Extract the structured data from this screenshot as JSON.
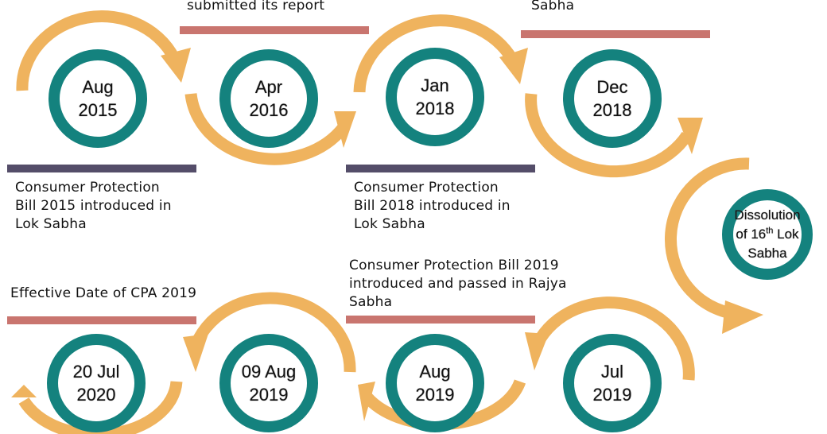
{
  "milestones": [
    {
      "line1": "Aug",
      "line2": "2015"
    },
    {
      "line1": "Apr",
      "line2": "2016"
    },
    {
      "line1": "Jan",
      "line2": "2018"
    },
    {
      "line1": "Dec",
      "line2": "2018"
    },
    {
      "line1": "Dissolution",
      "line2a": "of 16",
      "sup": "th",
      "line2b": " Lok",
      "line3": "Sabha"
    },
    {
      "line1": "Jul",
      "line2": "2019"
    },
    {
      "line1": "Aug",
      "line2": "2019"
    },
    {
      "line1": "09 Aug",
      "line2": "2019"
    },
    {
      "line1": "20 Jul",
      "line2": "2020"
    }
  ],
  "captions": {
    "bill_2015": [
      "Consumer Protection",
      "Bill 2015 introduced in",
      "Lok Sabha"
    ],
    "report_2016": [
      "submitted its report"
    ],
    "bill_2018": [
      "Consumer Protection",
      "Bill 2018 introduced in",
      "Lok Sabha"
    ],
    "dec_2018": [
      "Sabha"
    ],
    "bill_2019": [
      "Consumer Protection Bill 2019",
      "introduced and passed in Rajya",
      "Sabha"
    ],
    "effective": [
      "Effective Date of CPA 2019"
    ]
  },
  "colors": {
    "ring": "#14827e",
    "arrow": "#efb35e",
    "bar_red": "#c9756f",
    "bar_dark": "#544d69"
  }
}
